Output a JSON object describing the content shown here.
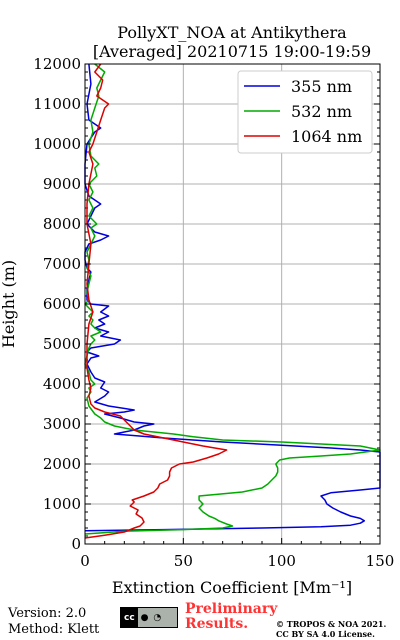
{
  "chart_data": {
    "type": "line",
    "title": "PollyXT_NOA at Antikythera",
    "subtitle": "[Averaged] 20210715 19:00-19:59",
    "xlabel": "Extinction Coefficient [Mm⁻¹]",
    "ylabel": "Height (m)",
    "xlim": [
      0,
      150
    ],
    "ylim": [
      0,
      12000
    ],
    "x_ticks": [
      0,
      50,
      100,
      150
    ],
    "y_ticks": [
      0,
      1000,
      2000,
      3000,
      4000,
      5000,
      6000,
      7000,
      8000,
      9000,
      10000,
      11000,
      12000
    ],
    "grid": true,
    "legend_position": "top-right",
    "series": [
      {
        "name": "355 nm",
        "color": "#0000dd",
        "points": [
          [
            0,
            330
          ],
          [
            40,
            360
          ],
          [
            90,
            400
          ],
          [
            120,
            430
          ],
          [
            135,
            470
          ],
          [
            140,
            520
          ],
          [
            142,
            580
          ],
          [
            140,
            640
          ],
          [
            135,
            700
          ],
          [
            130,
            800
          ],
          [
            126,
            900
          ],
          [
            123,
            1000
          ],
          [
            122,
            1100
          ],
          [
            120,
            1200
          ],
          [
            125,
            1280
          ],
          [
            140,
            1350
          ],
          [
            150,
            1400
          ],
          [
            150,
            2300
          ],
          [
            140,
            2350
          ],
          [
            125,
            2400
          ],
          [
            100,
            2470
          ],
          [
            70,
            2550
          ],
          [
            40,
            2650
          ],
          [
            15,
            2750
          ],
          [
            20,
            2800
          ],
          [
            25,
            2850
          ],
          [
            30,
            2950
          ],
          [
            35,
            3000
          ],
          [
            25,
            3050
          ],
          [
            18,
            3150
          ],
          [
            10,
            3250
          ],
          [
            20,
            3300
          ],
          [
            25,
            3350
          ],
          [
            12,
            3450
          ],
          [
            5,
            3550
          ],
          [
            10,
            3700
          ],
          [
            12,
            3800
          ],
          [
            8,
            3900
          ],
          [
            10,
            4050
          ],
          [
            5,
            4150
          ],
          [
            3,
            4300
          ],
          [
            1,
            4500
          ],
          [
            3,
            4650
          ],
          [
            7,
            4700
          ],
          [
            1,
            4800
          ],
          [
            3,
            4900
          ],
          [
            15,
            5000
          ],
          [
            18,
            5100
          ],
          [
            8,
            5200
          ],
          [
            12,
            5300
          ],
          [
            5,
            5400
          ],
          [
            10,
            5500
          ],
          [
            7,
            5600
          ],
          [
            12,
            5700
          ],
          [
            8,
            5800
          ],
          [
            12,
            5950
          ],
          [
            3,
            6000
          ],
          [
            1,
            6100
          ],
          [
            1,
            6400
          ],
          [
            2,
            6600
          ],
          [
            3,
            6800
          ],
          [
            1,
            6900
          ],
          [
            0,
            7100
          ],
          [
            0,
            7300
          ],
          [
            2,
            7500
          ],
          [
            8,
            7600
          ],
          [
            12,
            7700
          ],
          [
            5,
            7800
          ],
          [
            1,
            8000
          ],
          [
            3,
            8200
          ],
          [
            5,
            8400
          ],
          [
            8,
            8500
          ],
          [
            2,
            8700
          ],
          [
            0,
            9000
          ],
          [
            0,
            9500
          ],
          [
            1,
            10000
          ],
          [
            5,
            10300
          ],
          [
            8,
            10400
          ],
          [
            2,
            10600
          ],
          [
            1,
            11000
          ],
          [
            3,
            11500
          ],
          [
            2,
            12000
          ]
        ]
      },
      {
        "name": "532 nm",
        "color": "#00aa00",
        "points": [
          [
            0,
            250
          ],
          [
            20,
            320
          ],
          [
            50,
            360
          ],
          [
            70,
            400
          ],
          [
            75,
            450
          ],
          [
            72,
            500
          ],
          [
            68,
            580
          ],
          [
            66,
            640
          ],
          [
            63,
            700
          ],
          [
            60,
            800
          ],
          [
            58,
            900
          ],
          [
            60,
            1000
          ],
          [
            58,
            1100
          ],
          [
            58,
            1200
          ],
          [
            80,
            1300
          ],
          [
            90,
            1400
          ],
          [
            93,
            1500
          ],
          [
            95,
            1600
          ],
          [
            97,
            1700
          ],
          [
            98,
            1800
          ],
          [
            98,
            1900
          ],
          [
            97,
            2000
          ],
          [
            99,
            2100
          ],
          [
            104,
            2150
          ],
          [
            120,
            2200
          ],
          [
            135,
            2250
          ],
          [
            150,
            2350
          ],
          [
            140,
            2450
          ],
          [
            100,
            2550
          ],
          [
            70,
            2600
          ],
          [
            55,
            2680
          ],
          [
            45,
            2750
          ],
          [
            35,
            2800
          ],
          [
            25,
            2850
          ],
          [
            15,
            2950
          ],
          [
            10,
            3050
          ],
          [
            8,
            3150
          ],
          [
            5,
            3250
          ],
          [
            2,
            3450
          ],
          [
            1,
            3650
          ],
          [
            3,
            3800
          ],
          [
            2,
            3900
          ],
          [
            5,
            4000
          ],
          [
            3,
            4100
          ],
          [
            2,
            4300
          ],
          [
            0,
            4500
          ],
          [
            1,
            4700
          ],
          [
            2,
            4900
          ],
          [
            3,
            5000
          ],
          [
            5,
            5100
          ],
          [
            3,
            5200
          ],
          [
            8,
            5300
          ],
          [
            5,
            5400
          ],
          [
            3,
            5500
          ],
          [
            4,
            5600
          ],
          [
            2,
            5700
          ],
          [
            4,
            5800
          ],
          [
            2,
            5900
          ],
          [
            0,
            6000
          ],
          [
            2,
            6100
          ],
          [
            1,
            6300
          ],
          [
            2,
            6500
          ],
          [
            3,
            6700
          ],
          [
            1,
            6900
          ],
          [
            2,
            7100
          ],
          [
            1,
            7300
          ],
          [
            3,
            7500
          ],
          [
            5,
            7700
          ],
          [
            3,
            7900
          ],
          [
            6,
            8000
          ],
          [
            2,
            8200
          ],
          [
            4,
            8400
          ],
          [
            2,
            8600
          ],
          [
            4,
            8800
          ],
          [
            2,
            9000
          ],
          [
            6,
            9200
          ],
          [
            5,
            9400
          ],
          [
            7,
            9500
          ],
          [
            3,
            9700
          ],
          [
            2,
            10000
          ],
          [
            4,
            10300
          ],
          [
            3,
            10600
          ],
          [
            5,
            10900
          ],
          [
            7,
            11200
          ],
          [
            6,
            11400
          ],
          [
            8,
            11600
          ],
          [
            10,
            11800
          ],
          [
            5,
            12000
          ]
        ]
      },
      {
        "name": "1064 nm",
        "color": "#dd0000",
        "points": [
          [
            0,
            150
          ],
          [
            10,
            220
          ],
          [
            20,
            300
          ],
          [
            25,
            400
          ],
          [
            28,
            450
          ],
          [
            30,
            550
          ],
          [
            29,
            650
          ],
          [
            26,
            750
          ],
          [
            27,
            850
          ],
          [
            23,
            950
          ],
          [
            25,
            1050
          ],
          [
            24,
            1100
          ],
          [
            30,
            1200
          ],
          [
            35,
            1300
          ],
          [
            37,
            1400
          ],
          [
            38,
            1500
          ],
          [
            42,
            1600
          ],
          [
            43,
            1700
          ],
          [
            43,
            1800
          ],
          [
            44,
            1900
          ],
          [
            48,
            2000
          ],
          [
            55,
            2050
          ],
          [
            62,
            2150
          ],
          [
            68,
            2250
          ],
          [
            72,
            2350
          ],
          [
            60,
            2450
          ],
          [
            50,
            2550
          ],
          [
            40,
            2650
          ],
          [
            30,
            2750
          ],
          [
            25,
            2850
          ],
          [
            22,
            3000
          ],
          [
            20,
            3100
          ],
          [
            18,
            3200
          ],
          [
            10,
            3300
          ],
          [
            5,
            3400
          ],
          [
            3,
            3500
          ],
          [
            2,
            3700
          ],
          [
            3,
            3900
          ],
          [
            2,
            4100
          ],
          [
            1,
            4400
          ],
          [
            1,
            5000
          ],
          [
            2,
            5500
          ],
          [
            4,
            5800
          ],
          [
            2,
            6100
          ],
          [
            1,
            6500
          ],
          [
            2,
            7000
          ],
          [
            3,
            7500
          ],
          [
            1,
            8000
          ],
          [
            1,
            8500
          ],
          [
            2,
            9000
          ],
          [
            4,
            9500
          ],
          [
            2,
            9800
          ],
          [
            4,
            10000
          ],
          [
            6,
            10300
          ],
          [
            8,
            10600
          ],
          [
            10,
            10900
          ],
          [
            12,
            11000
          ],
          [
            6,
            11200
          ],
          [
            8,
            11400
          ],
          [
            9,
            11600
          ],
          [
            5,
            11800
          ],
          [
            8,
            12000
          ]
        ]
      }
    ]
  },
  "footer": {
    "version": "Version: 2.0",
    "method": "Method: Klett",
    "preliminary_line1": "Preliminary",
    "preliminary_line2": "Results.",
    "copyright_line1": "© TROPOS & NOA 2021.",
    "copyright_line2": "CC BY SA 4.0 License.",
    "license_badge": "cc by sa"
  }
}
